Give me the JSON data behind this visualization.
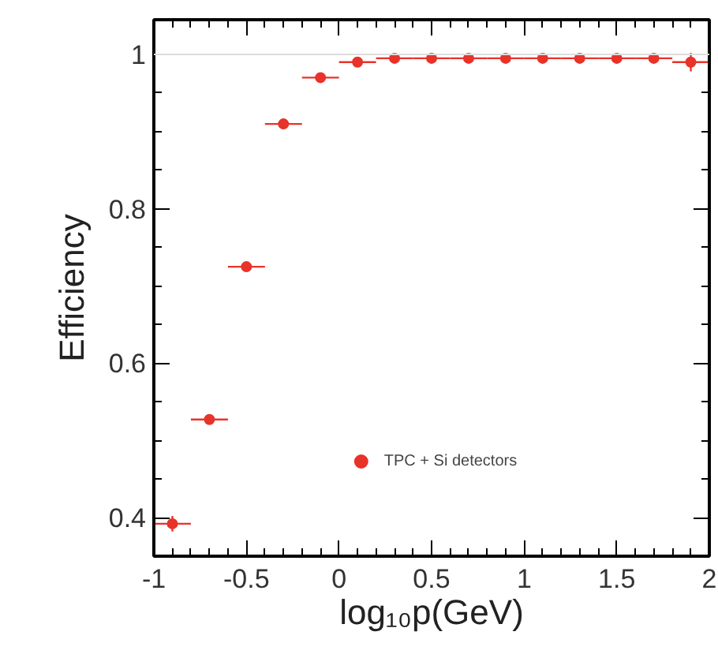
{
  "chart_data": {
    "type": "scatter",
    "xlabel": "log₁₀p(GeV)",
    "ylabel": "Efficiency",
    "x": [
      -0.9,
      -0.7,
      -0.5,
      -0.3,
      -0.1,
      0.1,
      0.3,
      0.5,
      0.7,
      0.9,
      1.1,
      1.3,
      1.5,
      1.7,
      1.9
    ],
    "series": [
      {
        "name": "TPC + Si detectors",
        "color": "#e8332a",
        "values": [
          0.392,
          0.527,
          0.725,
          0.91,
          0.97,
          0.99,
          0.995,
          0.995,
          0.995,
          0.995,
          0.995,
          0.995,
          0.995,
          0.995,
          0.99
        ],
        "xerrors": [
          0.1,
          0.1,
          0.1,
          0.1,
          0.1,
          0.1,
          0.1,
          0.1,
          0.1,
          0.1,
          0.1,
          0.1,
          0.1,
          0.1,
          0.1
        ],
        "errors": [
          0.01,
          null,
          null,
          null,
          null,
          null,
          null,
          null,
          null,
          null,
          null,
          null,
          null,
          null,
          0.012
        ]
      }
    ],
    "xlim": [
      -1,
      2
    ],
    "ylim": [
      0.35,
      1.045
    ],
    "xticks": [
      -1,
      -0.5,
      0,
      0.5,
      1,
      1.5,
      2
    ],
    "yticks": [
      0.4,
      0.6,
      0.8,
      1
    ],
    "ref_lines": [
      {
        "axis": "y",
        "value": 1,
        "label": null,
        "color": "#dddddd"
      }
    ],
    "marker": "circle",
    "grid": false,
    "legend": "bottom"
  }
}
